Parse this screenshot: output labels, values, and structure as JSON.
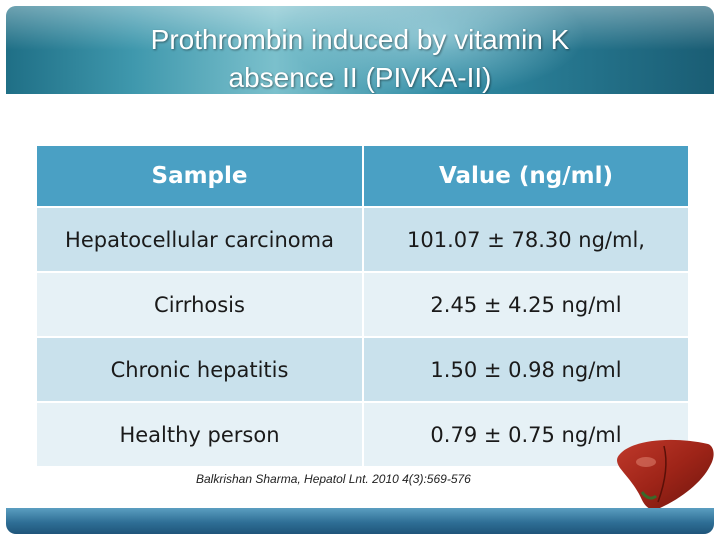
{
  "slide": {
    "title_line1": "Prothrombin induced by vitamin K",
    "title_line2": "absence II (PIVKA-II)",
    "table": {
      "headers": [
        "Sample",
        "Value (ng/ml)"
      ],
      "rows": [
        [
          "Hepatocellular carcinoma",
          "101.07 ± 78.30 ng/ml,"
        ],
        [
          "Cirrhosis",
          "2.45 ± 4.25 ng/ml"
        ],
        [
          "Chronic hepatitis",
          "1.50 ± 0.98 ng/ml"
        ],
        [
          "Healthy person",
          "0.79 ± 0.75 ng/ml"
        ]
      ]
    },
    "citation": "Balkrishan Sharma, Hepatol Lnt. 2010 4(3):569-576",
    "colors": {
      "header_bg": "#4aa0c4",
      "row_dark": "#c9e1ec",
      "row_light": "#e6f1f6",
      "banner": "#2f8aa3",
      "footer": "#2f6f96"
    },
    "decorations": {
      "liver_image": "liver-illustration"
    }
  }
}
